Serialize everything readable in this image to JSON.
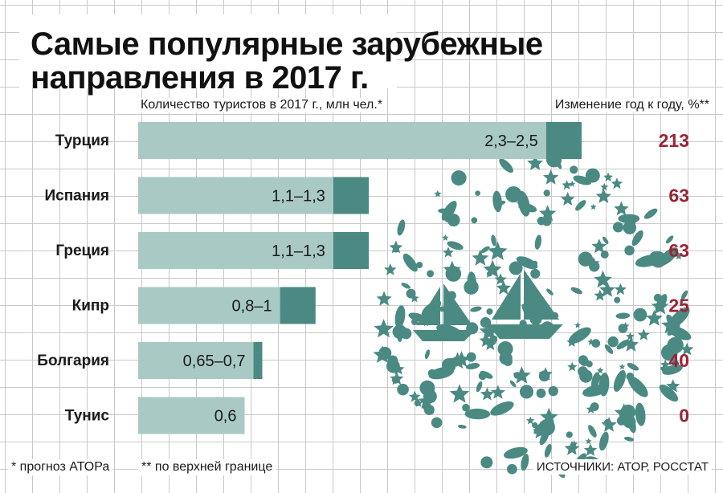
{
  "title_lines": [
    "Самые популярные зарубежные",
    "направления в 2017 г."
  ],
  "colors": {
    "bar_main": "#a9c9c5",
    "bar_tip": "#4a8a82",
    "change_value": "#9b2335",
    "illustration": "#4a8a82"
  },
  "chart_data": {
    "type": "bar",
    "orientation": "horizontal",
    "left_header": "Количество туристов в 2017 г., млн чел.*",
    "right_header": "Изменение год к году, %**",
    "categories": [
      "Турция",
      "Испания",
      "Греция",
      "Кипр",
      "Болгария",
      "Тунис"
    ],
    "series": [
      {
        "name": "",
        "low": [
          2.3,
          1.1,
          1.1,
          0.8,
          0.65,
          0.6
        ],
        "high": [
          2.5,
          1.3,
          1.3,
          1.0,
          0.7,
          0.6
        ]
      }
    ],
    "value_labels": [
      "2,3–2,5",
      "1,1–1,3",
      "1,1–1,3",
      "0,8–1",
      "0,65–0,7",
      "0,6"
    ],
    "change_labels": [
      "213",
      "63",
      "63",
      "25",
      "40",
      "0"
    ],
    "xlim": [
      0,
      2.5
    ]
  },
  "illustration_icon": "sea-travel-icons-circle",
  "footnotes": {
    "left1": "* прогноз АТОРа",
    "left2": "** по верхней границе",
    "source": "ИСТОЧНИКИ: АТОР, РОССТАТ"
  }
}
